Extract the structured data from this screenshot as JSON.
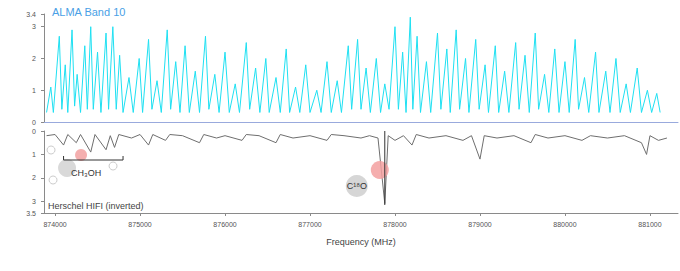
{
  "chart_data": {
    "type": "line",
    "xlabel": "Frequency (MHz)",
    "xlim": [
      873870,
      881330
    ],
    "xticks": [
      874000,
      875000,
      876000,
      877000,
      878000,
      879000,
      880000,
      881000
    ],
    "ylim": [
      0,
      3.4
    ],
    "yticks": [
      0,
      1,
      2,
      3
    ],
    "y2lim": [
      3.5,
      0
    ],
    "y2ticks": [
      0,
      1,
      2,
      3
    ],
    "grid": false,
    "series": [
      {
        "name": "ALMA Band 10",
        "color": "#1fe0f2",
        "x": [
          873900,
          873950,
          873980,
          874050,
          874080,
          874120,
          874150,
          874200,
          874230,
          874260,
          874300,
          874350,
          874380,
          874420,
          874450,
          874500,
          874540,
          874600,
          874630,
          874680,
          874720,
          874760,
          874800,
          874870,
          874920,
          874990,
          875030,
          875100,
          875140,
          875200,
          875250,
          875320,
          875360,
          875420,
          875470,
          875530,
          875580,
          875650,
          875700,
          875770,
          875810,
          875880,
          875930,
          876000,
          876050,
          876120,
          876170,
          876250,
          876290,
          876360,
          876410,
          876480,
          876520,
          876600,
          876650,
          876720,
          876760,
          876830,
          876880,
          876950,
          877000,
          877080,
          877130,
          877200,
          877250,
          877320,
          877370,
          877450,
          877490,
          877560,
          877600,
          877660,
          877710,
          877780,
          877830,
          877880,
          877930,
          878000,
          878040,
          878090,
          878130,
          878180,
          878210,
          878260,
          878300,
          878370,
          878420,
          878500,
          878540,
          878610,
          878650,
          878720,
          878760,
          878830,
          878870,
          878950,
          878990,
          879060,
          879100,
          879180,
          879220,
          879290,
          879340,
          879420,
          879460,
          879530,
          879580,
          879650,
          879690,
          879760,
          879810,
          879880,
          879930,
          880000,
          880050,
          880120,
          880160,
          880230,
          880280,
          880360,
          880400,
          880480,
          880530,
          880600,
          880650,
          880720,
          880770,
          880850,
          880900,
          880970,
          881020,
          881080,
          881120
        ],
        "values": [
          0.3,
          1.1,
          0.3,
          2.7,
          0.4,
          1.8,
          0.3,
          2.9,
          0.5,
          1.5,
          0.3,
          2.4,
          0.4,
          3.0,
          0.4,
          2.2,
          0.3,
          2.8,
          0.4,
          3.0,
          0.4,
          2.1,
          0.3,
          1.4,
          0.3,
          2.0,
          0.3,
          2.6,
          0.4,
          1.3,
          0.3,
          2.9,
          0.4,
          1.9,
          0.3,
          2.4,
          0.3,
          1.6,
          0.3,
          2.7,
          0.4,
          1.5,
          0.3,
          2.2,
          0.3,
          1.2,
          0.3,
          2.5,
          0.4,
          1.7,
          0.3,
          2.0,
          0.3,
          1.4,
          0.3,
          2.3,
          0.3,
          1.1,
          0.3,
          1.8,
          0.3,
          1.0,
          0.3,
          1.9,
          0.3,
          1.3,
          0.3,
          2.4,
          0.4,
          2.6,
          0.4,
          1.7,
          0.3,
          2.0,
          0.3,
          1.2,
          0.4,
          3.0,
          0.4,
          2.2,
          0.3,
          3.3,
          0.4,
          2.7,
          0.3,
          1.9,
          0.3,
          2.8,
          0.4,
          2.3,
          0.3,
          2.9,
          0.4,
          2.0,
          0.3,
          2.6,
          0.4,
          1.8,
          0.3,
          2.4,
          0.3,
          1.6,
          0.3,
          2.5,
          0.4,
          2.1,
          0.3,
          2.8,
          0.4,
          1.5,
          0.3,
          2.3,
          0.3,
          1.9,
          0.3,
          2.6,
          0.4,
          1.4,
          0.3,
          2.2,
          0.3,
          1.6,
          0.3,
          2.0,
          0.3,
          1.2,
          0.3,
          1.7,
          0.3,
          1.0,
          0.3,
          0.9,
          0.3
        ]
      },
      {
        "name": "Herschel HIFI (inverted)",
        "color": "#6e6e6e",
        "axis": "y2",
        "x": [
          873900,
          874000,
          874100,
          874150,
          874250,
          874300,
          874420,
          874470,
          874600,
          874650,
          874700,
          874750,
          874900,
          875000,
          875100,
          875150,
          875300,
          875350,
          875500,
          875700,
          875750,
          875900,
          876000,
          876200,
          876250,
          876400,
          876600,
          876650,
          876800,
          877000,
          877200,
          877250,
          877400,
          877600,
          877700,
          877800,
          877880,
          877920,
          878000,
          878100,
          878200,
          878250,
          878400,
          878600,
          878800,
          878900,
          879000,
          879050,
          879200,
          879400,
          879600,
          879650,
          879800,
          880000,
          880200,
          880300,
          880500,
          880700,
          880900,
          880960,
          881000,
          881100,
          881200
        ],
        "values": [
          0.2,
          0.15,
          0.6,
          0.15,
          0.5,
          0.15,
          0.9,
          0.15,
          0.8,
          0.2,
          0.7,
          0.15,
          0.3,
          0.15,
          0.6,
          0.15,
          0.4,
          0.15,
          0.2,
          0.5,
          0.15,
          0.3,
          0.2,
          0.4,
          0.15,
          0.2,
          0.5,
          0.15,
          0.3,
          0.2,
          0.4,
          0.15,
          0.2,
          0.3,
          0.2,
          0.3,
          3.1,
          0.2,
          0.4,
          0.2,
          0.6,
          0.15,
          0.3,
          0.2,
          0.4,
          0.2,
          1.2,
          0.2,
          0.3,
          0.2,
          0.5,
          0.15,
          0.3,
          0.2,
          0.4,
          0.2,
          0.3,
          0.2,
          0.5,
          1.0,
          0.2,
          0.4,
          0.3
        ]
      }
    ],
    "annotations": [
      {
        "text": "CH₃OH",
        "x": 874400,
        "span": [
          874100,
          874800
        ]
      },
      {
        "text": "C¹⁸O",
        "x": 877880
      }
    ]
  }
}
